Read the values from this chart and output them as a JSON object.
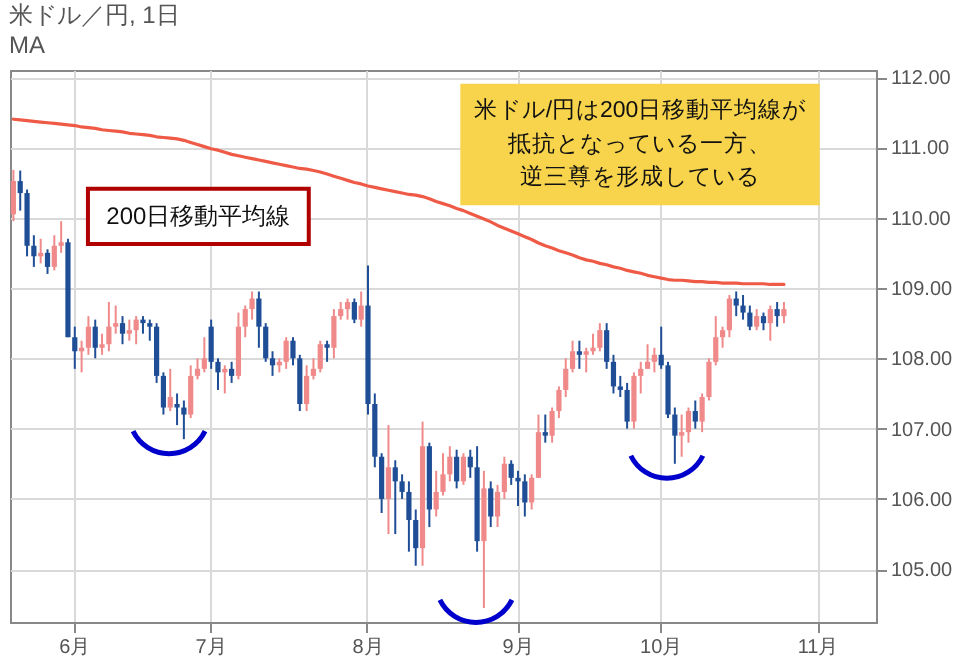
{
  "chart_data": {
    "type": "candlestick",
    "title": "米ドル／円, 1日",
    "subtitle": "MA",
    "categories": [
      null,
      null,
      null,
      null,
      null,
      null,
      null,
      null,
      null,
      "6月",
      null,
      null,
      null,
      null,
      null,
      null,
      null,
      null,
      null,
      null,
      null,
      null,
      null,
      null,
      null,
      null,
      null,
      null,
      null,
      "7月",
      null,
      null,
      null,
      null,
      null,
      null,
      null,
      null,
      null,
      null,
      null,
      null,
      null,
      null,
      null,
      null,
      null,
      null,
      null,
      null,
      null,
      null,
      "8月",
      null,
      null,
      null,
      null,
      null,
      null,
      null,
      null,
      null,
      null,
      null,
      null,
      null,
      null,
      null,
      null,
      null,
      null,
      null,
      null,
      null,
      "9月",
      null,
      null,
      null,
      null,
      null,
      null,
      null,
      null,
      null,
      null,
      null,
      null,
      null,
      null,
      null,
      null,
      null,
      null,
      null,
      null,
      "10月",
      null,
      null,
      null,
      null,
      null,
      null,
      null,
      null,
      null,
      null,
      null,
      null,
      null,
      null,
      null,
      null,
      null,
      null,
      null,
      null,
      null,
      null,
      "11月",
      null,
      null,
      null,
      null,
      null,
      null,
      null,
      null
    ],
    "ohlc": [
      [
        110.05,
        110.68,
        109.95,
        110.52
      ],
      [
        110.52,
        110.67,
        110.1,
        110.35
      ],
      [
        110.35,
        110.4,
        109.45,
        109.6
      ],
      [
        109.6,
        109.75,
        109.3,
        109.45
      ],
      [
        109.45,
        109.7,
        109.35,
        109.5
      ],
      [
        109.5,
        109.55,
        109.2,
        109.3
      ],
      [
        109.3,
        109.75,
        109.25,
        109.6
      ],
      [
        109.6,
        109.95,
        109.5,
        109.65
      ],
      [
        109.65,
        109.7,
        108.3,
        108.3
      ],
      [
        108.3,
        108.45,
        107.85,
        108.1
      ],
      [
        108.1,
        108.25,
        107.8,
        108.15
      ],
      [
        108.15,
        108.6,
        108.05,
        108.45
      ],
      [
        108.45,
        108.55,
        108.0,
        108.15
      ],
      [
        108.15,
        108.35,
        108.05,
        108.2
      ],
      [
        108.2,
        108.8,
        108.1,
        108.45
      ],
      [
        108.45,
        108.75,
        108.35,
        108.5
      ],
      [
        108.5,
        108.6,
        108.2,
        108.35
      ],
      [
        108.35,
        108.55,
        108.25,
        108.4
      ],
      [
        108.4,
        108.6,
        108.2,
        108.55
      ],
      [
        108.55,
        108.6,
        108.35,
        108.5
      ],
      [
        108.5,
        108.55,
        108.25,
        108.45
      ],
      [
        108.45,
        108.5,
        107.65,
        107.75
      ],
      [
        107.75,
        107.8,
        107.2,
        107.3
      ],
      [
        107.3,
        107.85,
        107.25,
        107.45
      ],
      [
        107.35,
        107.5,
        107.05,
        107.3
      ],
      [
        107.3,
        107.4,
        106.85,
        107.2
      ],
      [
        107.2,
        107.9,
        107.15,
        107.75
      ],
      [
        107.75,
        108.0,
        107.7,
        107.85
      ],
      [
        107.85,
        108.3,
        107.8,
        108.0
      ],
      [
        108.45,
        108.55,
        107.85,
        107.95
      ],
      [
        107.95,
        108.0,
        107.55,
        107.8
      ],
      [
        107.8,
        107.9,
        107.5,
        107.85
      ],
      [
        107.85,
        107.95,
        107.65,
        107.75
      ],
      [
        107.75,
        108.65,
        107.7,
        108.45
      ],
      [
        108.45,
        108.75,
        108.3,
        108.7
      ],
      [
        108.7,
        108.95,
        108.55,
        108.85
      ],
      [
        108.85,
        108.95,
        108.15,
        108.45
      ],
      [
        108.45,
        108.5,
        107.95,
        108.0
      ],
      [
        108.0,
        108.1,
        107.75,
        107.9
      ],
      [
        107.9,
        108.0,
        107.8,
        107.95
      ],
      [
        107.95,
        108.3,
        107.85,
        108.25
      ],
      [
        108.25,
        108.3,
        107.9,
        108.0
      ],
      [
        108.0,
        108.05,
        107.25,
        107.35
      ],
      [
        107.35,
        107.9,
        107.25,
        107.75
      ],
      [
        107.75,
        108.0,
        107.7,
        107.85
      ],
      [
        107.85,
        108.25,
        107.8,
        108.2
      ],
      [
        108.2,
        108.25,
        107.95,
        108.15
      ],
      [
        108.15,
        108.7,
        108.0,
        108.6
      ],
      [
        108.6,
        108.8,
        108.55,
        108.7
      ],
      [
        108.7,
        108.85,
        108.55,
        108.8
      ],
      [
        108.8,
        108.85,
        108.5,
        108.55
      ],
      [
        108.55,
        108.95,
        108.45,
        108.75
      ],
      [
        108.75,
        109.32,
        107.2,
        107.35
      ],
      [
        107.35,
        107.5,
        106.45,
        106.6
      ],
      [
        106.6,
        106.65,
        105.8,
        106.0
      ],
      [
        106.0,
        107.05,
        105.5,
        106.45
      ],
      [
        106.45,
        106.55,
        105.5,
        106.25
      ],
      [
        106.25,
        106.35,
        106.0,
        106.1
      ],
      [
        106.1,
        106.25,
        105.25,
        105.7
      ],
      [
        105.7,
        105.85,
        105.05,
        105.3
      ],
      [
        105.3,
        107.1,
        105.05,
        106.75
      ],
      [
        106.75,
        106.8,
        105.6,
        105.85
      ],
      [
        105.85,
        106.4,
        105.75,
        106.1
      ],
      [
        106.1,
        106.65,
        106.05,
        106.35
      ],
      [
        106.35,
        106.75,
        106.25,
        106.6
      ],
      [
        106.6,
        106.7,
        106.15,
        106.25
      ],
      [
        106.25,
        106.65,
        106.2,
        106.6
      ],
      [
        106.6,
        106.7,
        106.3,
        106.45
      ],
      [
        106.45,
        106.75,
        105.25,
        105.4
      ],
      [
        105.4,
        106.4,
        104.45,
        106.15
      ],
      [
        106.15,
        106.25,
        105.6,
        105.75
      ],
      [
        105.75,
        106.2,
        105.6,
        106.1
      ],
      [
        106.1,
        106.6,
        106.0,
        106.5
      ],
      [
        106.5,
        106.55,
        106.2,
        106.3
      ],
      [
        106.3,
        106.4,
        105.9,
        106.25
      ],
      [
        106.25,
        106.35,
        105.75,
        105.95
      ],
      [
        105.95,
        106.35,
        105.85,
        106.3
      ],
      [
        106.3,
        107.2,
        106.3,
        106.95
      ],
      [
        106.95,
        107.2,
        106.8,
        106.9
      ],
      [
        106.9,
        107.3,
        106.8,
        107.25
      ],
      [
        107.25,
        107.6,
        107.15,
        107.55
      ],
      [
        107.55,
        108.0,
        107.45,
        107.85
      ],
      [
        107.85,
        108.25,
        107.8,
        108.1
      ],
      [
        108.1,
        108.25,
        107.85,
        108.05
      ],
      [
        108.05,
        108.15,
        107.8,
        108.1
      ],
      [
        108.1,
        108.35,
        108.05,
        108.15
      ],
      [
        108.15,
        108.5,
        108.1,
        108.4
      ],
      [
        108.4,
        108.5,
        107.85,
        107.95
      ],
      [
        107.95,
        108.05,
        107.5,
        107.6
      ],
      [
        107.6,
        107.75,
        107.45,
        107.55
      ],
      [
        107.55,
        107.65,
        107.0,
        107.1
      ],
      [
        107.1,
        107.8,
        107.0,
        107.75
      ],
      [
        107.75,
        107.95,
        107.5,
        107.85
      ],
      [
        107.85,
        108.2,
        107.85,
        107.95
      ],
      [
        107.95,
        108.15,
        107.8,
        108.05
      ],
      [
        108.05,
        108.45,
        107.85,
        107.9
      ],
      [
        107.9,
        107.95,
        107.15,
        107.2
      ],
      [
        107.2,
        107.3,
        106.5,
        106.9
      ],
      [
        106.9,
        107.2,
        106.6,
        106.95
      ],
      [
        106.95,
        107.3,
        106.8,
        107.25
      ],
      [
        107.25,
        107.4,
        107.0,
        107.1
      ],
      [
        107.1,
        107.5,
        106.95,
        107.45
      ],
      [
        107.45,
        108.0,
        107.4,
        107.95
      ],
      [
        107.95,
        108.6,
        107.9,
        108.3
      ],
      [
        108.3,
        108.45,
        108.15,
        108.4
      ],
      [
        108.4,
        108.9,
        108.3,
        108.85
      ],
      [
        108.85,
        108.95,
        108.6,
        108.75
      ],
      [
        108.75,
        108.9,
        108.55,
        108.65
      ],
      [
        108.65,
        108.75,
        108.4,
        108.45
      ],
      [
        108.45,
        108.7,
        108.4,
        108.6
      ],
      [
        108.6,
        108.65,
        108.4,
        108.5
      ],
      [
        108.5,
        108.75,
        108.25,
        108.7
      ],
      [
        108.7,
        108.8,
        108.45,
        108.6
      ],
      [
        108.6,
        108.8,
        108.5,
        108.7
      ],
      null,
      null,
      null,
      null,
      null,
      null,
      null,
      null,
      null,
      null,
      null,
      null,
      null
    ],
    "colors": [
      "#f08a8a",
      "#1f4e96",
      "#1f4e96",
      "#1f4e96",
      "#f08a8a",
      "#1f4e96",
      "#f08a8a",
      "#f08a8a",
      "#1f4e96",
      "#1f4e96",
      "#f08a8a",
      "#f08a8a",
      "#1f4e96",
      "#f08a8a",
      "#f08a8a",
      "#f08a8a",
      "#1f4e96",
      "#f08a8a",
      "#f08a8a",
      "#1f4e96",
      "#1f4e96",
      "#1f4e96",
      "#1f4e96",
      "#f08a8a",
      "#1f4e96",
      "#1f4e96",
      "#f08a8a",
      "#f08a8a",
      "#f08a8a",
      "#1f4e96",
      "#1f4e96",
      "#f08a8a",
      "#1f4e96",
      "#f08a8a",
      "#f08a8a",
      "#f08a8a",
      "#1f4e96",
      "#1f4e96",
      "#1f4e96",
      "#f08a8a",
      "#f08a8a",
      "#1f4e96",
      "#1f4e96",
      "#f08a8a",
      "#f08a8a",
      "#f08a8a",
      "#1f4e96",
      "#f08a8a",
      "#f08a8a",
      "#f08a8a",
      "#1f4e96",
      "#f08a8a",
      "#1f4e96",
      "#1f4e96",
      "#1f4e96",
      "#f08a8a",
      "#1f4e96",
      "#1f4e96",
      "#1f4e96",
      "#1f4e96",
      "#f08a8a",
      "#1f4e96",
      "#f08a8a",
      "#f08a8a",
      "#f08a8a",
      "#1f4e96",
      "#f08a8a",
      "#1f4e96",
      "#1f4e96",
      "#f08a8a",
      "#1f4e96",
      "#f08a8a",
      "#f08a8a",
      "#1f4e96",
      "#1f4e96",
      "#1f4e96",
      "#f08a8a",
      "#f08a8a",
      "#1f4e96",
      "#f08a8a",
      "#f08a8a",
      "#f08a8a",
      "#f08a8a",
      "#1f4e96",
      "#f08a8a",
      "#f08a8a",
      "#f08a8a",
      "#1f4e96",
      "#1f4e96",
      "#1f4e96",
      "#1f4e96",
      "#f08a8a",
      "#f08a8a",
      "#f08a8a",
      "#f08a8a",
      "#1f4e96",
      "#1f4e96",
      "#1f4e96",
      "#f08a8a",
      "#f08a8a",
      "#1f4e96",
      "#f08a8a",
      "#f08a8a",
      "#f08a8a",
      "#f08a8a",
      "#f08a8a",
      "#1f4e96",
      "#1f4e96",
      "#1f4e96",
      "#f08a8a",
      "#1f4e96",
      "#f08a8a",
      "#1f4e96",
      "#f08a8a",
      null,
      null,
      null,
      null,
      null,
      null,
      null,
      null,
      null,
      null,
      null,
      null,
      null
    ],
    "series": [
      {
        "type": "line",
        "color": "#ef5a46",
        "values": [
          111.4,
          111.39,
          111.38,
          111.37,
          111.36,
          111.35,
          111.34,
          111.33,
          111.32,
          111.31,
          111.29,
          111.28,
          111.27,
          111.25,
          111.24,
          111.23,
          111.22,
          111.2,
          111.19,
          111.18,
          111.17,
          111.15,
          111.14,
          111.13,
          111.12,
          111.1,
          111.07,
          111.04,
          111.01,
          110.98,
          110.96,
          110.93,
          110.9,
          110.88,
          110.86,
          110.84,
          110.82,
          110.8,
          110.78,
          110.76,
          110.74,
          110.72,
          110.7,
          110.69,
          110.67,
          110.65,
          110.62,
          110.59,
          110.56,
          110.53,
          110.5,
          110.48,
          110.45,
          110.43,
          110.41,
          110.39,
          110.37,
          110.35,
          110.33,
          110.32,
          110.3,
          110.27,
          110.23,
          110.2,
          110.17,
          110.13,
          110.1,
          110.06,
          110.02,
          109.98,
          109.94,
          109.89,
          109.85,
          109.81,
          109.77,
          109.73,
          109.69,
          109.64,
          109.6,
          109.57,
          109.53,
          109.5,
          109.47,
          109.43,
          109.4,
          109.38,
          109.35,
          109.33,
          109.3,
          109.28,
          109.25,
          109.23,
          109.21,
          109.18,
          109.16,
          109.14,
          109.12,
          109.11,
          109.11,
          109.1,
          109.09,
          109.09,
          109.08,
          109.08,
          109.07,
          109.07,
          109.07,
          109.06,
          109.06,
          109.06,
          109.06,
          109.05,
          109.05,
          109.05,
          null,
          null,
          null,
          null,
          null,
          null,
          null,
          null,
          null,
          null,
          null,
          null,
          null
        ]
      }
    ],
    "ylim": [
      104.25,
      112.1
    ],
    "yticks": [
      {
        "value": 105,
        "label": "105.00"
      },
      {
        "value": 106,
        "label": "106.00"
      },
      {
        "value": 107,
        "label": "107.00"
      },
      {
        "value": 108,
        "label": "108.00"
      },
      {
        "value": 109,
        "label": "109.00"
      },
      {
        "value": 110,
        "label": "110.00"
      },
      {
        "value": 111,
        "label": "111.00"
      },
      {
        "value": 112,
        "label": "112.00"
      }
    ],
    "grid": true,
    "annotations": [
      "200日移動平均線",
      "米ドル/円は200日移動平均線が",
      "抵抗となっている一方、",
      "逆三尊を形成している"
    ]
  }
}
